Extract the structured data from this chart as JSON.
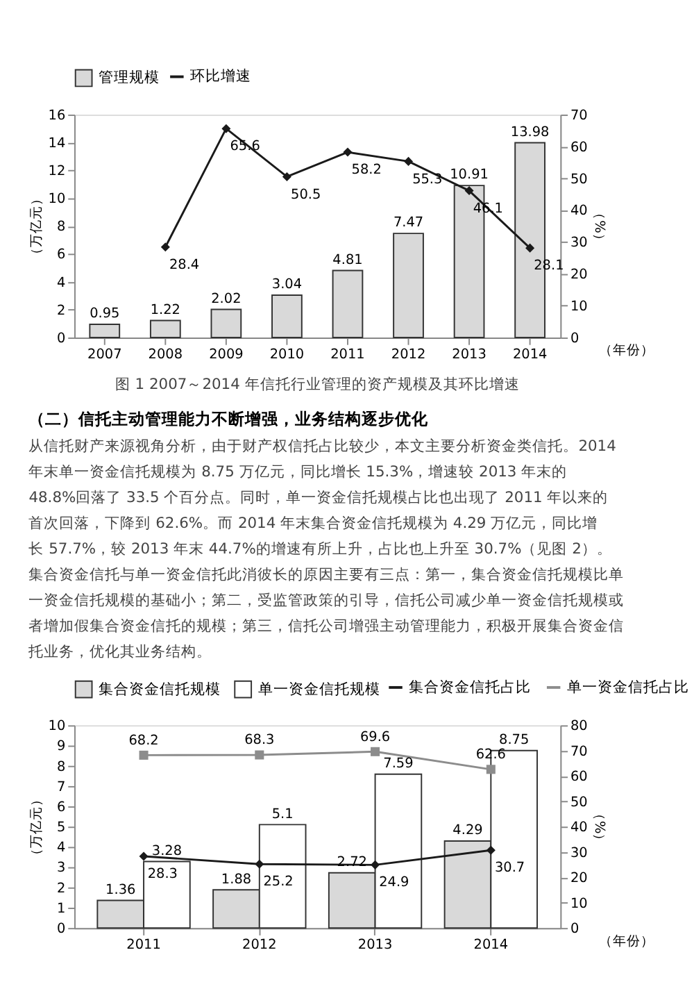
{
  "chart_data": [
    {
      "type": "bar",
      "title": "图 1 2007～2014 年信托行业管理的资产规模及其环比增速",
      "xlabel": "（年份）",
      "ylabel": "（万亿元）",
      "y2label": "（%）",
      "categories": [
        "2007",
        "2008",
        "2009",
        "2010",
        "2011",
        "2012",
        "2013",
        "2014"
      ],
      "series": [
        {
          "name": "管理规模",
          "color": "#d9d9d9",
          "values": [
            0.95,
            1.22,
            2.02,
            3.04,
            4.81,
            7.47,
            10.91,
            13.98
          ]
        },
        {
          "name": "环比增速",
          "type": "line",
          "axis": "y2",
          "marker": "diamond",
          "color": "#1a1a1a",
          "values": [
            null,
            28.4,
            65.6,
            50.5,
            58.2,
            55.3,
            46.1,
            28.1
          ]
        }
      ],
      "ylim": [
        0,
        16
      ],
      "yticks": [
        0,
        2,
        4,
        6,
        8,
        10,
        12,
        14,
        16
      ],
      "y2lim": [
        0,
        70
      ],
      "y2ticks": [
        0,
        10,
        20,
        30,
        40,
        50,
        60,
        70
      ],
      "data_labels": true,
      "grid": false,
      "legend": "top"
    },
    {
      "type": "bar",
      "title": "（二）信托主动管理能力不断增强，业务结构逐步优化",
      "subtitle": "从信托财产来源视角分析，由于财产权信托占比较少，本文主要分析资金类信托。2014 年末单一资金信托规模为 8.75 万亿元，同比增长 15.3%，增速较 2013 年末的 48.8%回落了 33.5 个百分点。同时，单一资金信托规模占比也出现了 2011 年以来的首次回落，下降到 62.6%。而 2014 年末集合资金信托规模为 4.29 万亿元，同比增长 57.7%，较 2013 年末 44.7%的增速有所上升，占比也上升至 30.7%（见图 2）。集合资金信托与单一资金信托此消彼长的原因主要有三点：第一，集合资金信托规模比单一资金信托规模的基础小；第二，受监管政策的引导，信托公司减少单一资金信托规模或者增加假集合资金信托的规模；第三，信托公司增强主动管理能力，积极开展集合资金信托业务，优化其业务结构。",
      "xlabel": "（年份）",
      "ylabel": "（万亿元）",
      "y2label": "（%）",
      "categories": [
        "2011",
        "2012",
        "2013",
        "2014"
      ],
      "series": [
        {
          "name": "集合资金信托规模",
          "color": "#d9d9d9",
          "values": [
            1.36,
            1.88,
            2.72,
            4.29
          ]
        },
        {
          "name": "单一资金信托规模",
          "color": "#ffffff",
          "values": [
            3.28,
            5.1,
            7.59,
            8.75
          ]
        },
        {
          "name": "集合资金信托占比",
          "type": "line",
          "axis": "y2",
          "marker": "diamond",
          "color": "#1a1a1a",
          "values": [
            28.3,
            25.2,
            24.9,
            30.7
          ]
        },
        {
          "name": "单一资金信托占比",
          "type": "line",
          "axis": "y2",
          "marker": "square",
          "color": "#8c8c8c",
          "values": [
            68.2,
            68.3,
            69.6,
            62.6
          ]
        }
      ],
      "ylim": [
        0,
        10
      ],
      "yticks": [
        0,
        1,
        2,
        3,
        4,
        5,
        6,
        7,
        8,
        9,
        10
      ],
      "y2lim": [
        0,
        80
      ],
      "y2ticks": [
        0,
        10,
        20,
        30,
        40,
        50,
        60,
        70,
        80
      ],
      "data_labels": true,
      "grid": false,
      "legend": "top"
    }
  ]
}
